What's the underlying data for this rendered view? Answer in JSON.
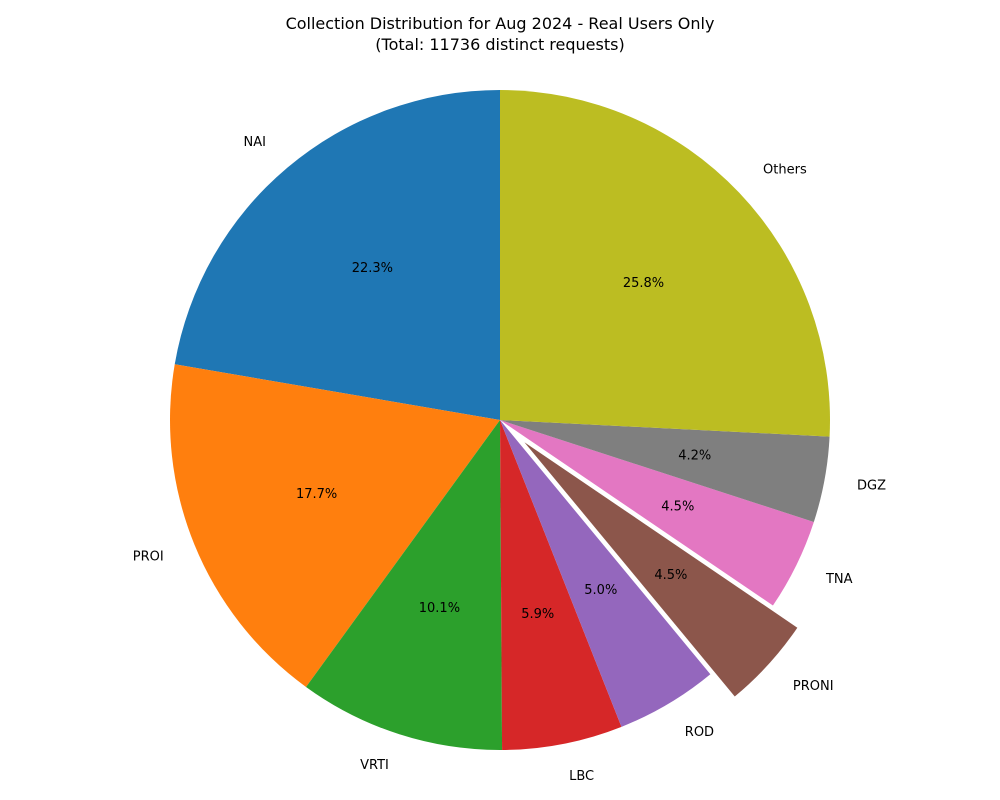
{
  "chart_data": {
    "type": "pie",
    "title": "Collection Distribution for Aug 2024 - Real Users Only",
    "subtitle": "(Total: 11736 distinct requests)",
    "start_angle_deg": 90,
    "direction": "counterclockwise",
    "slices": [
      {
        "label": "NAI",
        "value": 22.3,
        "pct_label": "22.3%",
        "color": "#1f77b4",
        "exploded": false
      },
      {
        "label": "PROI",
        "value": 17.7,
        "pct_label": "17.7%",
        "color": "#ff7f0e",
        "exploded": false
      },
      {
        "label": "VRTI",
        "value": 10.1,
        "pct_label": "10.1%",
        "color": "#2ca02c",
        "exploded": false
      },
      {
        "label": "LBC",
        "value": 5.9,
        "pct_label": "5.9%",
        "color": "#d62728",
        "exploded": false
      },
      {
        "label": "ROD",
        "value": 5.0,
        "pct_label": "5.0%",
        "color": "#9467bd",
        "exploded": false
      },
      {
        "label": "PRONI",
        "value": 4.5,
        "pct_label": "4.5%",
        "color": "#8c564b",
        "exploded": true
      },
      {
        "label": "TNA",
        "value": 4.5,
        "pct_label": "4.5%",
        "color": "#e377c2",
        "exploded": false
      },
      {
        "label": "DGZ",
        "value": 4.2,
        "pct_label": "4.2%",
        "color": "#7f7f7f",
        "exploded": false
      },
      {
        "label": "Others",
        "value": 25.8,
        "pct_label": "25.8%",
        "color": "#bcbd22",
        "exploded": false
      }
    ]
  }
}
